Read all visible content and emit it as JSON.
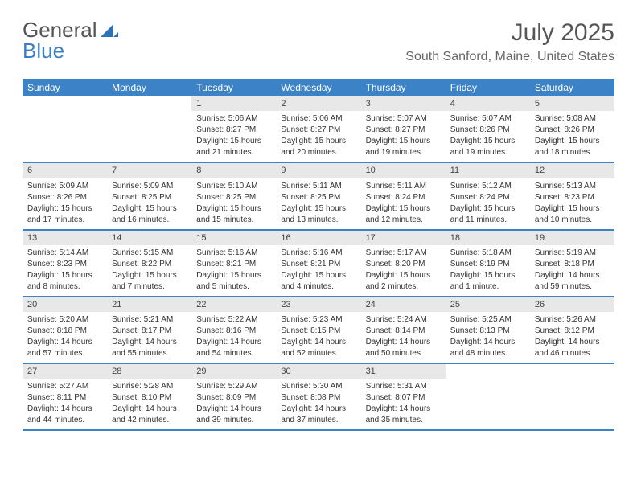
{
  "brand": {
    "part1": "General",
    "part2": "Blue"
  },
  "title": "July 2025",
  "location": "South Sanford, Maine, United States",
  "day_headers": [
    "Sunday",
    "Monday",
    "Tuesday",
    "Wednesday",
    "Thursday",
    "Friday",
    "Saturday"
  ],
  "colors": {
    "header_bar": "#3b82c7",
    "daynum_bg": "#e8e8e8",
    "text": "#333333",
    "title_text": "#555555",
    "logo_blue": "#3b7fc4"
  },
  "weeks": [
    [
      {
        "empty": true
      },
      {
        "empty": true
      },
      {
        "day": "1",
        "sunrise": "Sunrise: 5:06 AM",
        "sunset": "Sunset: 8:27 PM",
        "daylight1": "Daylight: 15 hours",
        "daylight2": "and 21 minutes."
      },
      {
        "day": "2",
        "sunrise": "Sunrise: 5:06 AM",
        "sunset": "Sunset: 8:27 PM",
        "daylight1": "Daylight: 15 hours",
        "daylight2": "and 20 minutes."
      },
      {
        "day": "3",
        "sunrise": "Sunrise: 5:07 AM",
        "sunset": "Sunset: 8:27 PM",
        "daylight1": "Daylight: 15 hours",
        "daylight2": "and 19 minutes."
      },
      {
        "day": "4",
        "sunrise": "Sunrise: 5:07 AM",
        "sunset": "Sunset: 8:26 PM",
        "daylight1": "Daylight: 15 hours",
        "daylight2": "and 19 minutes."
      },
      {
        "day": "5",
        "sunrise": "Sunrise: 5:08 AM",
        "sunset": "Sunset: 8:26 PM",
        "daylight1": "Daylight: 15 hours",
        "daylight2": "and 18 minutes."
      }
    ],
    [
      {
        "day": "6",
        "sunrise": "Sunrise: 5:09 AM",
        "sunset": "Sunset: 8:26 PM",
        "daylight1": "Daylight: 15 hours",
        "daylight2": "and 17 minutes."
      },
      {
        "day": "7",
        "sunrise": "Sunrise: 5:09 AM",
        "sunset": "Sunset: 8:25 PM",
        "daylight1": "Daylight: 15 hours",
        "daylight2": "and 16 minutes."
      },
      {
        "day": "8",
        "sunrise": "Sunrise: 5:10 AM",
        "sunset": "Sunset: 8:25 PM",
        "daylight1": "Daylight: 15 hours",
        "daylight2": "and 15 minutes."
      },
      {
        "day": "9",
        "sunrise": "Sunrise: 5:11 AM",
        "sunset": "Sunset: 8:25 PM",
        "daylight1": "Daylight: 15 hours",
        "daylight2": "and 13 minutes."
      },
      {
        "day": "10",
        "sunrise": "Sunrise: 5:11 AM",
        "sunset": "Sunset: 8:24 PM",
        "daylight1": "Daylight: 15 hours",
        "daylight2": "and 12 minutes."
      },
      {
        "day": "11",
        "sunrise": "Sunrise: 5:12 AM",
        "sunset": "Sunset: 8:24 PM",
        "daylight1": "Daylight: 15 hours",
        "daylight2": "and 11 minutes."
      },
      {
        "day": "12",
        "sunrise": "Sunrise: 5:13 AM",
        "sunset": "Sunset: 8:23 PM",
        "daylight1": "Daylight: 15 hours",
        "daylight2": "and 10 minutes."
      }
    ],
    [
      {
        "day": "13",
        "sunrise": "Sunrise: 5:14 AM",
        "sunset": "Sunset: 8:23 PM",
        "daylight1": "Daylight: 15 hours",
        "daylight2": "and 8 minutes."
      },
      {
        "day": "14",
        "sunrise": "Sunrise: 5:15 AM",
        "sunset": "Sunset: 8:22 PM",
        "daylight1": "Daylight: 15 hours",
        "daylight2": "and 7 minutes."
      },
      {
        "day": "15",
        "sunrise": "Sunrise: 5:16 AM",
        "sunset": "Sunset: 8:21 PM",
        "daylight1": "Daylight: 15 hours",
        "daylight2": "and 5 minutes."
      },
      {
        "day": "16",
        "sunrise": "Sunrise: 5:16 AM",
        "sunset": "Sunset: 8:21 PM",
        "daylight1": "Daylight: 15 hours",
        "daylight2": "and 4 minutes."
      },
      {
        "day": "17",
        "sunrise": "Sunrise: 5:17 AM",
        "sunset": "Sunset: 8:20 PM",
        "daylight1": "Daylight: 15 hours",
        "daylight2": "and 2 minutes."
      },
      {
        "day": "18",
        "sunrise": "Sunrise: 5:18 AM",
        "sunset": "Sunset: 8:19 PM",
        "daylight1": "Daylight: 15 hours",
        "daylight2": "and 1 minute."
      },
      {
        "day": "19",
        "sunrise": "Sunrise: 5:19 AM",
        "sunset": "Sunset: 8:18 PM",
        "daylight1": "Daylight: 14 hours",
        "daylight2": "and 59 minutes."
      }
    ],
    [
      {
        "day": "20",
        "sunrise": "Sunrise: 5:20 AM",
        "sunset": "Sunset: 8:18 PM",
        "daylight1": "Daylight: 14 hours",
        "daylight2": "and 57 minutes."
      },
      {
        "day": "21",
        "sunrise": "Sunrise: 5:21 AM",
        "sunset": "Sunset: 8:17 PM",
        "daylight1": "Daylight: 14 hours",
        "daylight2": "and 55 minutes."
      },
      {
        "day": "22",
        "sunrise": "Sunrise: 5:22 AM",
        "sunset": "Sunset: 8:16 PM",
        "daylight1": "Daylight: 14 hours",
        "daylight2": "and 54 minutes."
      },
      {
        "day": "23",
        "sunrise": "Sunrise: 5:23 AM",
        "sunset": "Sunset: 8:15 PM",
        "daylight1": "Daylight: 14 hours",
        "daylight2": "and 52 minutes."
      },
      {
        "day": "24",
        "sunrise": "Sunrise: 5:24 AM",
        "sunset": "Sunset: 8:14 PM",
        "daylight1": "Daylight: 14 hours",
        "daylight2": "and 50 minutes."
      },
      {
        "day": "25",
        "sunrise": "Sunrise: 5:25 AM",
        "sunset": "Sunset: 8:13 PM",
        "daylight1": "Daylight: 14 hours",
        "daylight2": "and 48 minutes."
      },
      {
        "day": "26",
        "sunrise": "Sunrise: 5:26 AM",
        "sunset": "Sunset: 8:12 PM",
        "daylight1": "Daylight: 14 hours",
        "daylight2": "and 46 minutes."
      }
    ],
    [
      {
        "day": "27",
        "sunrise": "Sunrise: 5:27 AM",
        "sunset": "Sunset: 8:11 PM",
        "daylight1": "Daylight: 14 hours",
        "daylight2": "and 44 minutes."
      },
      {
        "day": "28",
        "sunrise": "Sunrise: 5:28 AM",
        "sunset": "Sunset: 8:10 PM",
        "daylight1": "Daylight: 14 hours",
        "daylight2": "and 42 minutes."
      },
      {
        "day": "29",
        "sunrise": "Sunrise: 5:29 AM",
        "sunset": "Sunset: 8:09 PM",
        "daylight1": "Daylight: 14 hours",
        "daylight2": "and 39 minutes."
      },
      {
        "day": "30",
        "sunrise": "Sunrise: 5:30 AM",
        "sunset": "Sunset: 8:08 PM",
        "daylight1": "Daylight: 14 hours",
        "daylight2": "and 37 minutes."
      },
      {
        "day": "31",
        "sunrise": "Sunrise: 5:31 AM",
        "sunset": "Sunset: 8:07 PM",
        "daylight1": "Daylight: 14 hours",
        "daylight2": "and 35 minutes."
      },
      {
        "empty": true
      },
      {
        "empty": true
      }
    ]
  ]
}
